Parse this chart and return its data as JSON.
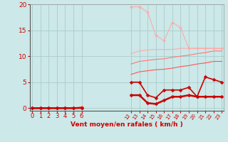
{
  "background_color": "#cce8e8",
  "grid_color": "#aacccc",
  "xlabel": "Vent moyen/en rafales ( km/h )",
  "xlabel_color": "#cc0000",
  "tick_color": "#cc0000",
  "ylim": [
    -0.5,
    20
  ],
  "xlim": [
    0,
    23
  ],
  "yticks": [
    0,
    5,
    10,
    15,
    20
  ],
  "xticks_left": [
    0,
    1,
    2,
    3,
    4,
    5,
    6
  ],
  "xticks_right": [
    12,
    13,
    14,
    15,
    16,
    17,
    18,
    19,
    20,
    21,
    22,
    23
  ],
  "lines": [
    {
      "x": [
        0,
        1,
        2,
        3,
        4,
        5,
        6,
        12,
        13,
        14,
        15,
        16,
        17,
        18,
        19,
        20,
        21,
        22,
        23
      ],
      "y": [
        0,
        0,
        0,
        0,
        0,
        0,
        0.3,
        19.5,
        19.5,
        18.5,
        14.0,
        13.0,
        16.5,
        15.5,
        11.5,
        11.5,
        11.5,
        11.5,
        11.5
      ],
      "color": "#ffaaaa",
      "linewidth": 0.8,
      "marker": "D",
      "markersize": 2.0,
      "zorder": 2
    },
    {
      "x": [
        0,
        1,
        2,
        3,
        4,
        5,
        6,
        12,
        13,
        14,
        15,
        16,
        17,
        18,
        19,
        20,
        21,
        22,
        23
      ],
      "y": [
        0,
        0,
        0,
        0,
        0,
        0,
        0.3,
        10.5,
        11.0,
        11.2,
        11.3,
        11.3,
        11.3,
        11.5,
        11.5,
        11.5,
        11.5,
        11.5,
        11.5
      ],
      "color": "#ffaaaa",
      "linewidth": 0.8,
      "marker": null,
      "markersize": 0,
      "zorder": 2
    },
    {
      "x": [
        0,
        1,
        2,
        3,
        4,
        5,
        6,
        12,
        13,
        14,
        15,
        16,
        17,
        18,
        19,
        20,
        21,
        22,
        23
      ],
      "y": [
        0,
        0,
        0,
        0,
        0,
        0,
        0.2,
        8.5,
        9.0,
        9.2,
        9.4,
        9.5,
        9.8,
        10.0,
        10.2,
        10.5,
        10.7,
        11.0,
        11.0
      ],
      "color": "#ff7777",
      "linewidth": 0.8,
      "marker": null,
      "markersize": 0,
      "zorder": 3
    },
    {
      "x": [
        0,
        1,
        2,
        3,
        4,
        5,
        6,
        12,
        13,
        14,
        15,
        16,
        17,
        18,
        19,
        20,
        21,
        22,
        23
      ],
      "y": [
        0,
        0,
        0,
        0,
        0,
        0,
        0.15,
        6.5,
        7.0,
        7.2,
        7.4,
        7.5,
        7.7,
        8.0,
        8.2,
        8.5,
        8.7,
        9.0,
        9.0
      ],
      "color": "#ff5555",
      "linewidth": 0.8,
      "marker": null,
      "markersize": 0,
      "zorder": 3
    },
    {
      "x": [
        0,
        1,
        2,
        3,
        4,
        5,
        6,
        12,
        13,
        14,
        15,
        16,
        17,
        18,
        19,
        20,
        21,
        22,
        23
      ],
      "y": [
        0,
        0,
        0,
        0,
        0,
        0,
        0.1,
        5.0,
        5.0,
        2.5,
        2.0,
        3.5,
        3.5,
        3.5,
        4.0,
        2.2,
        6.0,
        5.5,
        5.0
      ],
      "color": "#cc0000",
      "linewidth": 1.2,
      "marker": "D",
      "markersize": 2.5,
      "zorder": 4
    },
    {
      "x": [
        0,
        1,
        2,
        3,
        4,
        5,
        6,
        12,
        13,
        14,
        15,
        16,
        17,
        18,
        19,
        20,
        21,
        22,
        23
      ],
      "y": [
        0,
        0,
        0,
        0,
        0,
        0,
        0.05,
        2.5,
        2.5,
        1.0,
        0.8,
        1.5,
        2.2,
        2.2,
        2.5,
        2.2,
        2.2,
        2.2,
        2.2
      ],
      "color": "#cc0000",
      "linewidth": 1.8,
      "marker": "D",
      "markersize": 2.5,
      "zorder": 4
    }
  ]
}
